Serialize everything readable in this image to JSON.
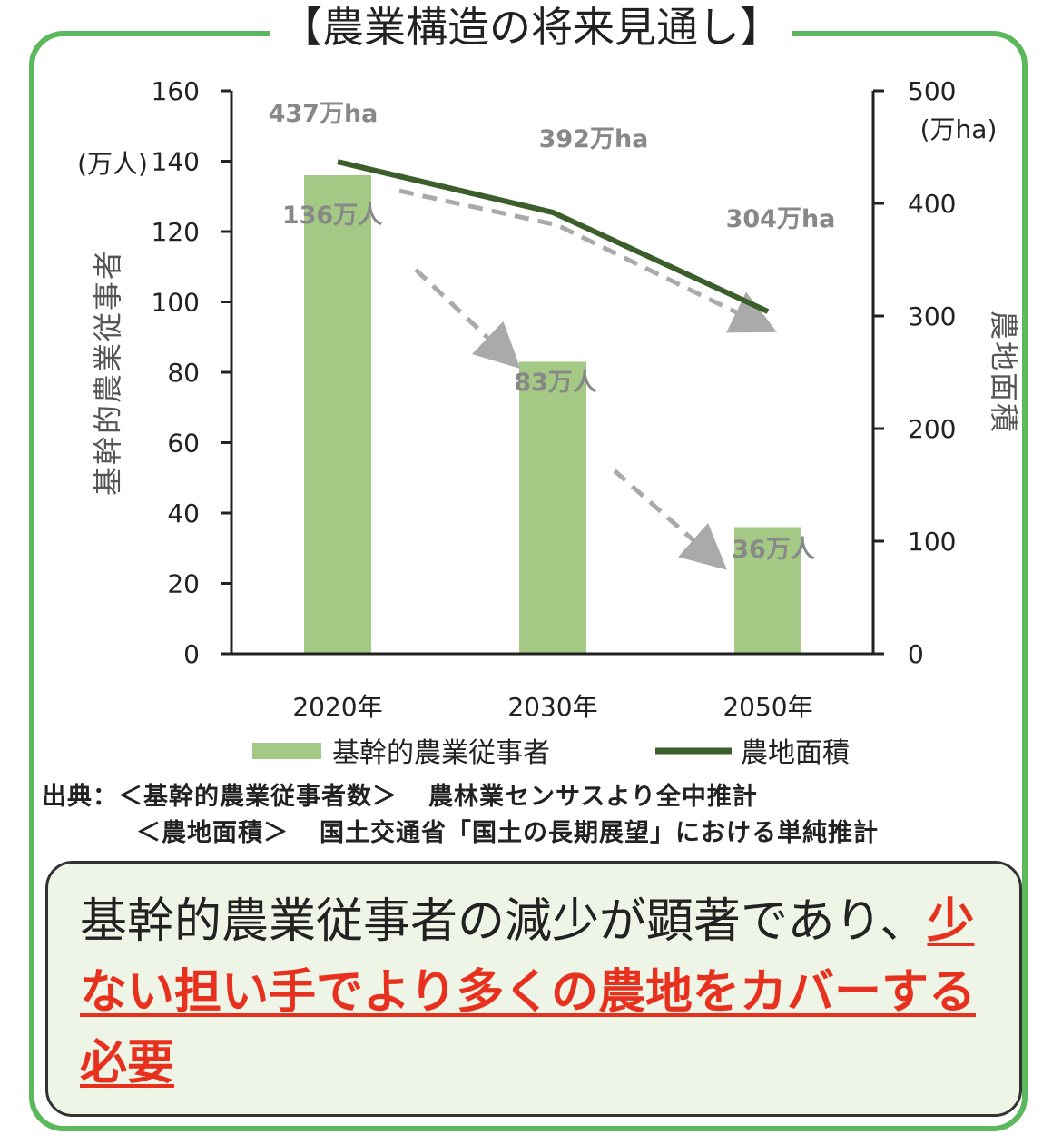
{
  "title": "【農業構造の将来見通し】",
  "chart_data": {
    "type": "bar",
    "categories": [
      "2020年",
      "2030年",
      "2050年"
    ],
    "series": [
      {
        "name": "基幹的農業従事者",
        "type": "bar",
        "axis": "left",
        "values": [
          136,
          83,
          36
        ],
        "labels": [
          "136万人",
          "83万人",
          "36万人"
        ],
        "color": "#a3c985"
      },
      {
        "name": "農地面積",
        "type": "line",
        "axis": "right",
        "values": [
          437,
          392,
          304
        ],
        "labels": [
          "437万ha",
          "392万ha",
          "304万ha"
        ],
        "color": "#3b5e2b"
      }
    ],
    "ylabel": "基幹的農業従事者",
    "yunit": "(万人)",
    "y2label": "農地面積",
    "y2unit": "(万ha)",
    "ylim": [
      0,
      160
    ],
    "y2lim": [
      0,
      500
    ],
    "yticks": [
      "0",
      "20",
      "40",
      "60",
      "80",
      "100",
      "120",
      "140",
      "160"
    ],
    "y2ticks": [
      "0",
      "100",
      "200",
      "300",
      "400",
      "500"
    ],
    "legend_position": "bottom",
    "trend_arrows_color": "#aaaaaa"
  },
  "source": {
    "line1_prefix": "出典：＜基幹的農業従事者数＞",
    "line1_suffix": "農林業センサスより全中推計",
    "line2_prefix": "＜農地面積＞",
    "line2_suffix": "国土交通省「国土の長期展望」における単純推計"
  },
  "callout": {
    "plain": "基幹的農業従事者の減少が顕著であり、",
    "emphasis": "少ない担い手でより多くの農地をカバーする必要"
  }
}
